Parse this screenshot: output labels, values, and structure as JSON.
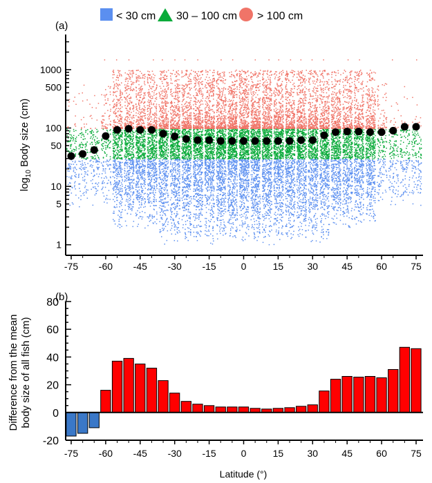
{
  "legend": [
    {
      "label": "< 30 cm",
      "shape": "square",
      "color": "#5b8ff0"
    },
    {
      "label": "30 – 100 cm",
      "shape": "triangle",
      "color": "#0aab3a"
    },
    {
      "label": "> 100 cm",
      "shape": "circle",
      "color": "#f07468"
    }
  ],
  "chart_data": [
    {
      "panel": "(a)",
      "type": "scatter",
      "ylabel_main": "log",
      "ylabel_sub": "10",
      "ylabel_rest": " Body size (cm)",
      "yscale": "log",
      "ylim": [
        0.66,
        4000
      ],
      "yticks": [
        1,
        5,
        10,
        50,
        100,
        500,
        1000
      ],
      "xticks": [
        -75,
        -60,
        -45,
        -30,
        -15,
        0,
        15,
        30,
        45,
        60,
        75
      ],
      "xlim": [
        -77,
        77
      ],
      "size_classes": [
        {
          "label": "< 30 cm",
          "min": 1,
          "max": 30,
          "color": "#5b8ff0"
        },
        {
          "label": "30 – 100 cm",
          "min": 30,
          "max": 100,
          "color": "#0aab3a"
        },
        {
          "label": "> 100 cm",
          "min": 100,
          "max": 1500,
          "color": "#f07468"
        }
      ],
      "mean_series": {
        "color": "#000000",
        "x": [
          -75,
          -70,
          -65,
          -60,
          -55,
          -50,
          -45,
          -40,
          -35,
          -30,
          -25,
          -20,
          -15,
          -10,
          -5,
          0,
          5,
          10,
          15,
          20,
          25,
          30,
          35,
          40,
          45,
          50,
          55,
          60,
          65,
          70,
          75
        ],
        "y": [
          33,
          36,
          42,
          73,
          93,
          97,
          93,
          93,
          80,
          72,
          65,
          62,
          62,
          60,
          60,
          60,
          60,
          60,
          60,
          60,
          62,
          62,
          75,
          85,
          87,
          87,
          85,
          85,
          90,
          105,
          105
        ]
      }
    },
    {
      "panel": "(b)",
      "type": "bar",
      "xlabel": "Latitude (°)",
      "ylabel_line1": "Difference from the mean",
      "ylabel_line2": "body size of all fish (cm)",
      "ylim": [
        -20,
        80
      ],
      "yticks": [
        -20,
        0,
        20,
        40,
        60,
        80
      ],
      "xticks": [
        -75,
        -60,
        -45,
        -30,
        -15,
        0,
        15,
        30,
        45,
        60,
        75
      ],
      "positive_color": "#ff0000",
      "negative_color": "#3a78c8",
      "categories": [
        -75,
        -70,
        -65,
        -60,
        -55,
        -50,
        -45,
        -40,
        -35,
        -30,
        -25,
        -20,
        -15,
        -10,
        -5,
        0,
        5,
        10,
        15,
        20,
        25,
        30,
        35,
        40,
        45,
        50,
        55,
        60,
        65,
        70,
        75
      ],
      "values": [
        -17,
        -15,
        -11,
        16,
        37,
        39,
        35,
        32,
        23,
        14,
        8,
        6,
        5,
        4,
        4,
        4,
        3,
        2.5,
        3,
        3.5,
        4.5,
        5.5,
        15.5,
        24,
        26,
        25.5,
        26,
        25,
        31,
        47,
        46
      ]
    }
  ]
}
